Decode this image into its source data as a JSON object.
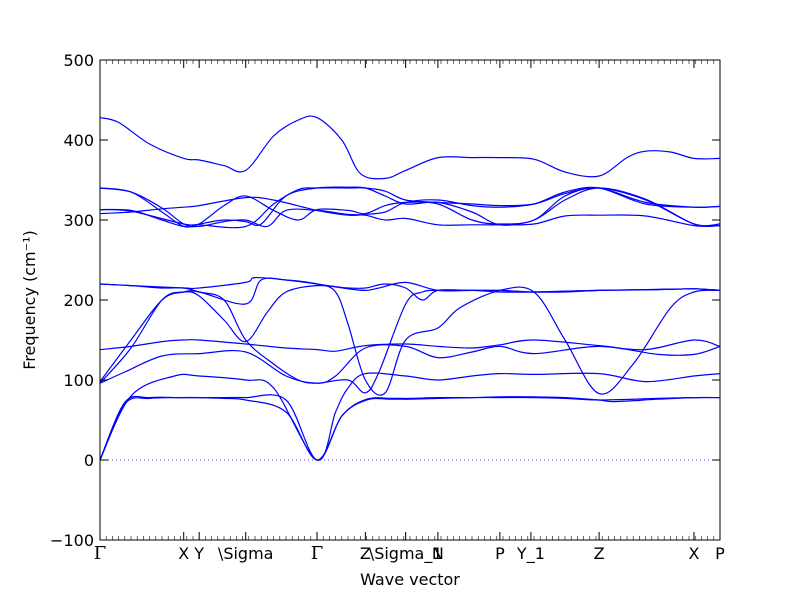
{
  "chart_data": {
    "type": "line",
    "title": "",
    "xlabel": "Wave vector",
    "ylabel": "Frequency (cm⁻¹)",
    "ylim": [
      -100,
      500
    ],
    "yticks": [
      -100,
      0,
      100,
      200,
      300,
      400,
      500
    ],
    "zero_line": true,
    "grid": false,
    "legend": "none",
    "line_color": "#0000ff",
    "zero_line_color": "#0000ff",
    "high_symmetry_points": [
      {
        "label": "Γ",
        "x": 0.0
      },
      {
        "label": "X",
        "x": 0.135
      },
      {
        "label": "Y",
        "x": 0.16
      },
      {
        "label": "\\Sigma",
        "x": 0.235
      },
      {
        "label": "Γ",
        "x": 0.35
      },
      {
        "label": "Z",
        "x": 0.428
      },
      {
        "label": "\\Sigma_1",
        "x": 0.493
      },
      {
        "label": "N",
        "x": 0.545
      },
      {
        "label": "P",
        "x": 0.645
      },
      {
        "label": "Y_1",
        "x": 0.695
      },
      {
        "label": "Z",
        "x": 0.805
      },
      {
        "label": "X",
        "x": 0.958
      },
      {
        "label": "P",
        "x": 1.0
      }
    ],
    "series": [
      {
        "x": [
          0,
          0.04,
          0.08,
          0.13,
          0.16,
          0.2,
          0.235,
          0.3,
          0.35,
          0.39,
          0.43,
          0.47,
          0.5,
          0.545,
          0.6,
          0.645,
          0.7,
          0.75,
          0.805,
          0.9,
          0.958,
          1.0
        ],
        "y": [
          0,
          70,
          77,
          78,
          78,
          77,
          75,
          60,
          0,
          55,
          75,
          76,
          76,
          77,
          78,
          78,
          78,
          77,
          75,
          77,
          78,
          78
        ]
      },
      {
        "x": [
          0,
          0.04,
          0.08,
          0.13,
          0.16,
          0.2,
          0.235,
          0.3,
          0.35,
          0.39,
          0.43,
          0.47,
          0.5,
          0.545,
          0.6,
          0.645,
          0.7,
          0.75,
          0.805,
          0.83,
          0.9,
          0.958,
          1.0
        ],
        "y": [
          0,
          72,
          78,
          78,
          78,
          78,
          78,
          75,
          0,
          55,
          76,
          77,
          77,
          78,
          78,
          79,
          79,
          78,
          75,
          73,
          76,
          78,
          78
        ]
      },
      {
        "x": [
          0,
          0.05,
          0.12,
          0.16,
          0.235,
          0.28,
          0.35,
          0.38,
          0.4,
          0.428,
          0.493,
          0.545,
          0.6,
          0.645,
          0.7,
          0.805,
          0.88,
          0.958,
          1.0
        ],
        "y": [
          0,
          80,
          105,
          105,
          100,
          90,
          0,
          60,
          90,
          108,
          105,
          100,
          105,
          108,
          107,
          108,
          98,
          105,
          108
        ]
      },
      {
        "x": [
          0,
          0.04,
          0.1,
          0.16,
          0.235,
          0.3,
          0.35,
          0.38,
          0.428,
          0.493,
          0.545,
          0.6,
          0.645,
          0.7,
          0.805,
          0.9,
          0.958,
          1.0
        ],
        "y": [
          96,
          110,
          130,
          133,
          135,
          105,
          96,
          105,
          140,
          142,
          128,
          135,
          142,
          133,
          142,
          132,
          132,
          142
        ]
      },
      {
        "x": [
          0,
          0.05,
          0.1,
          0.135,
          0.16,
          0.235,
          0.3,
          0.35,
          0.38,
          0.428,
          0.493,
          0.545,
          0.6,
          0.645,
          0.7,
          0.805,
          0.88,
          0.958,
          1.0
        ],
        "y": [
          138,
          142,
          148,
          150,
          150,
          145,
          140,
          138,
          136,
          143,
          145,
          142,
          140,
          144,
          150,
          143,
          138,
          150,
          142
        ]
      },
      {
        "x": [
          0,
          0.05,
          0.1,
          0.135,
          0.16,
          0.235,
          0.26,
          0.3,
          0.35,
          0.38,
          0.4,
          0.428,
          0.46,
          0.493,
          0.545,
          0.58,
          0.645,
          0.7,
          0.75,
          0.805,
          0.86,
          0.92,
          0.958,
          1.0
        ],
        "y": [
          98,
          150,
          200,
          210,
          210,
          195,
          225,
          225,
          220,
          210,
          170,
          100,
          84,
          150,
          165,
          190,
          212,
          210,
          150,
          83,
          120,
          190,
          210,
          212
        ]
      },
      {
        "x": [
          0,
          0.05,
          0.1,
          0.135,
          0.16,
          0.2,
          0.235,
          0.27,
          0.3,
          0.35,
          0.4,
          0.428,
          0.46,
          0.493,
          0.52,
          0.545,
          0.6,
          0.645,
          0.7,
          0.805,
          0.9,
          0.958,
          1.0
        ],
        "y": [
          96,
          140,
          200,
          210,
          205,
          175,
          148,
          185,
          210,
          218,
          215,
          215,
          220,
          215,
          200,
          212,
          212,
          212,
          210,
          212,
          213,
          214,
          212
        ]
      },
      {
        "x": [
          0,
          0.05,
          0.1,
          0.135,
          0.16,
          0.2,
          0.235,
          0.28,
          0.32,
          0.35,
          0.4,
          0.428,
          0.45,
          0.493,
          0.52,
          0.545,
          0.6,
          0.645,
          0.7,
          0.805,
          0.9,
          0.958,
          1.0
        ],
        "y": [
          220,
          218,
          215,
          215,
          210,
          200,
          150,
          120,
          100,
          96,
          100,
          84,
          110,
          195,
          210,
          212,
          212,
          210,
          210,
          212,
          213,
          214,
          212
        ]
      },
      {
        "x": [
          0,
          0.05,
          0.135,
          0.16,
          0.235,
          0.25,
          0.3,
          0.35,
          0.4,
          0.428,
          0.45,
          0.493,
          0.545,
          0.6,
          0.645,
          0.7,
          0.75,
          0.805,
          0.88,
          0.958,
          1.0
        ],
        "y": [
          220,
          218,
          215,
          215,
          222,
          228,
          225,
          220,
          214,
          212,
          215,
          222,
          212,
          212,
          212,
          210,
          210,
          212,
          213,
          214,
          212
        ]
      },
      {
        "x": [
          0,
          0.05,
          0.1,
          0.135,
          0.16,
          0.2,
          0.235,
          0.27,
          0.3,
          0.35,
          0.4,
          0.428,
          0.46,
          0.493,
          0.545,
          0.6,
          0.645,
          0.7,
          0.75,
          0.805,
          0.88,
          0.958,
          1.0
        ],
        "y": [
          340,
          335,
          315,
          295,
          292,
          298,
          300,
          292,
          312,
          312,
          307,
          306,
          300,
          302,
          294,
          294,
          294,
          295,
          305,
          306,
          305,
          293,
          293
        ]
      },
      {
        "x": [
          0,
          0.05,
          0.1,
          0.135,
          0.16,
          0.2,
          0.235,
          0.28,
          0.32,
          0.35,
          0.4,
          0.428,
          0.46,
          0.493,
          0.545,
          0.6,
          0.645,
          0.7,
          0.75,
          0.805,
          0.88,
          0.958,
          1.0
        ],
        "y": [
          313,
          312,
          300,
          292,
          295,
          318,
          330,
          312,
          300,
          313,
          312,
          308,
          318,
          322,
          320,
          300,
          295,
          300,
          330,
          340,
          325,
          295,
          295
        ]
      },
      {
        "x": [
          0,
          0.05,
          0.1,
          0.135,
          0.16,
          0.2,
          0.235,
          0.26,
          0.3,
          0.35,
          0.4,
          0.428,
          0.46,
          0.493,
          0.545,
          0.6,
          0.645,
          0.7,
          0.75,
          0.805,
          0.88,
          0.958,
          1.0
        ],
        "y": [
          340,
          335,
          310,
          292,
          295,
          300,
          298,
          295,
          330,
          340,
          341,
          340,
          330,
          320,
          322,
          310,
          294,
          300,
          325,
          340,
          326,
          295,
          293
        ]
      },
      {
        "x": [
          0,
          0.05,
          0.1,
          0.135,
          0.16,
          0.235,
          0.28,
          0.35,
          0.4,
          0.428,
          0.46,
          0.493,
          0.545,
          0.6,
          0.645,
          0.7,
          0.75,
          0.805,
          0.88,
          0.958,
          1.0
        ],
        "y": [
          308,
          310,
          314,
          316,
          318,
          328,
          325,
          312,
          306,
          307,
          310,
          322,
          325,
          318,
          316,
          320,
          335,
          340,
          320,
          316,
          317
        ]
      },
      {
        "x": [
          0,
          0.05,
          0.135,
          0.16,
          0.235,
          0.28,
          0.32,
          0.35,
          0.4,
          0.428,
          0.46,
          0.493,
          0.545,
          0.6,
          0.645,
          0.7,
          0.75,
          0.805,
          0.88,
          0.958,
          1.0
        ],
        "y": [
          313,
          311,
          295,
          294,
          292,
          320,
          338,
          340,
          340,
          340,
          336,
          325,
          322,
          320,
          318,
          320,
          333,
          340,
          322,
          316,
          317
        ]
      },
      {
        "x": [
          0,
          0.03,
          0.08,
          0.135,
          0.16,
          0.2,
          0.235,
          0.28,
          0.32,
          0.35,
          0.39,
          0.42,
          0.46,
          0.493,
          0.545,
          0.6,
          0.645,
          0.7,
          0.75,
          0.805,
          0.85,
          0.88,
          0.92,
          0.958,
          1.0
        ],
        "y": [
          428,
          422,
          395,
          377,
          375,
          368,
          362,
          405,
          425,
          428,
          400,
          358,
          352,
          362,
          378,
          378,
          378,
          376,
          360,
          355,
          378,
          386,
          385,
          377,
          377
        ]
      }
    ]
  }
}
